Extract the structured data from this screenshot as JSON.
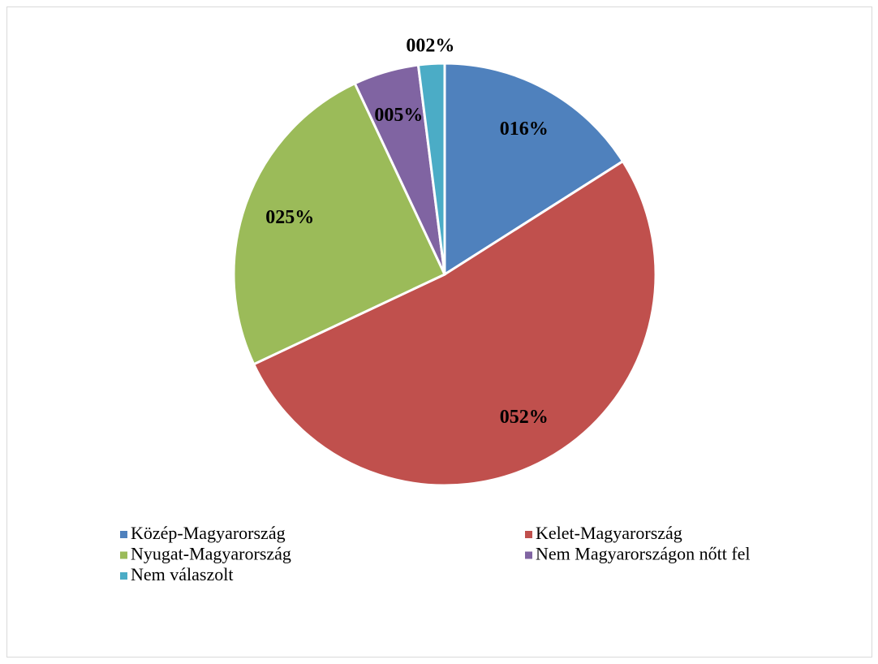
{
  "chart_data": {
    "type": "pie",
    "categories": [
      "Közép-Magyarország",
      "Kelet-Magyarország",
      "Nyugat-Magyarország",
      "Nem Magyarországon nőtt fel",
      "Nem válaszolt"
    ],
    "values": [
      16,
      52,
      25,
      5,
      2
    ],
    "value_labels": [
      "016%",
      "052%",
      "025%",
      "005%",
      "002%"
    ],
    "colors": [
      "#4f81bd",
      "#c0504d",
      "#9bbb59",
      "#8064a2",
      "#4bacc6"
    ],
    "legend": "bottom"
  }
}
